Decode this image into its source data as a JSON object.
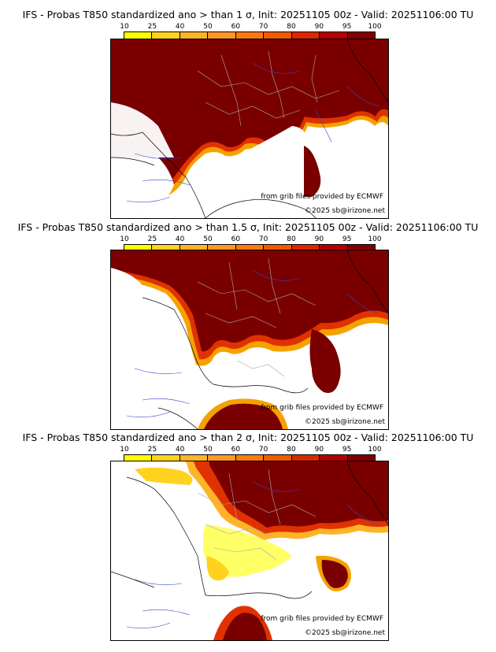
{
  "legend": {
    "labels": [
      "10",
      "25",
      "40",
      "50",
      "60",
      "70",
      "80",
      "90",
      "95",
      "100"
    ],
    "colors": [
      "#ffff00",
      "#ffd21e",
      "#ffb428",
      "#ff9628",
      "#ff7814",
      "#f05a00",
      "#dc2800",
      "#b40000",
      "#820000",
      "#5a0000"
    ]
  },
  "panels": [
    {
      "title": "IFS - Probas T850  standardized ano > than 1 σ, Init: 20251105 00z - Valid: 20251106:00 TU",
      "credit": "from grib files provided by ECMWF",
      "copyright": "©2025 sb@irizone.net"
    },
    {
      "title": "IFS - Probas T850  standardized ano > than 1.5 σ, Init: 20251105 00z - Valid: 20251106:00 TU",
      "credit": "from grib files provided by ECMWF",
      "copyright": "©2025 sb@irizone.net"
    },
    {
      "title": "IFS - Probas T850  standardized ano > than 2 σ, Init: 20251105 00z - Valid: 20251106:00 TU",
      "credit": "from grib files provided by ECMWF",
      "copyright": "©2025 sb@irizone.net"
    }
  ]
}
